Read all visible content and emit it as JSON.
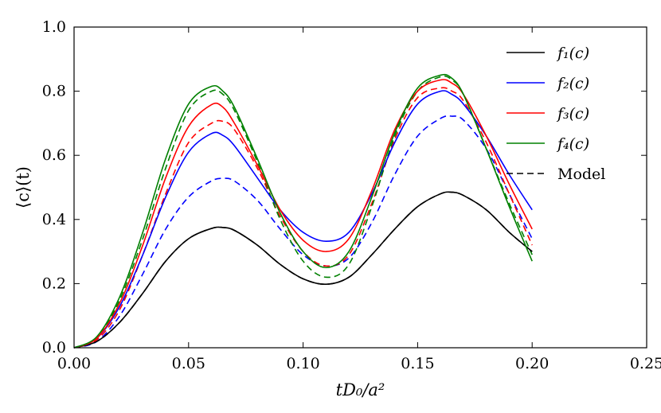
{
  "chart_data": {
    "type": "line",
    "title": "",
    "xlabel": "tD₀/a²",
    "ylabel": "⟨c⟩(t)",
    "xlim": [
      0.0,
      0.25
    ],
    "ylim": [
      0.0,
      1.0
    ],
    "x_ticks": [
      "0.00",
      "0.05",
      "0.10",
      "0.15",
      "0.20",
      "0.25"
    ],
    "y_ticks": [
      "0.0",
      "0.2",
      "0.4",
      "0.6",
      "0.8",
      "1.0"
    ],
    "x_tick_values": [
      0.0,
      0.05,
      0.1,
      0.15,
      0.2,
      0.25
    ],
    "y_tick_values": [
      0.0,
      0.2,
      0.4,
      0.6,
      0.8,
      1.0
    ],
    "legend_position": "top-right",
    "x": [
      0.0,
      0.01,
      0.02,
      0.03,
      0.04,
      0.05,
      0.06,
      0.065,
      0.07,
      0.08,
      0.09,
      0.1,
      0.11,
      0.12,
      0.13,
      0.14,
      0.15,
      0.16,
      0.165,
      0.17,
      0.18,
      0.19,
      0.2
    ],
    "series": [
      {
        "name": "f₁(c)",
        "color": "#000000",
        "dash": "solid",
        "values": [
          0.0,
          0.02,
          0.08,
          0.17,
          0.27,
          0.34,
          0.372,
          0.375,
          0.366,
          0.32,
          0.26,
          0.215,
          0.198,
          0.22,
          0.29,
          0.37,
          0.44,
          0.48,
          0.485,
          0.475,
          0.43,
          0.36,
          0.3
        ]
      },
      {
        "name": "f₂(c)",
        "color": "#0000ff",
        "dash": "solid",
        "values": [
          0.0,
          0.03,
          0.13,
          0.29,
          0.47,
          0.61,
          0.668,
          0.662,
          0.63,
          0.53,
          0.43,
          0.36,
          0.332,
          0.36,
          0.48,
          0.64,
          0.76,
          0.8,
          0.79,
          0.76,
          0.66,
          0.54,
          0.43
        ]
      },
      {
        "name": "f₃(c)",
        "color": "#ff0000",
        "dash": "solid",
        "values": [
          0.0,
          0.03,
          0.14,
          0.32,
          0.53,
          0.69,
          0.758,
          0.75,
          0.7,
          0.57,
          0.43,
          0.335,
          0.3,
          0.34,
          0.49,
          0.68,
          0.8,
          0.835,
          0.825,
          0.79,
          0.66,
          0.51,
          0.37
        ]
      },
      {
        "name": "f₄(c)",
        "color": "#008000",
        "dash": "solid",
        "values": [
          0.0,
          0.035,
          0.16,
          0.36,
          0.59,
          0.76,
          0.815,
          0.8,
          0.75,
          0.59,
          0.42,
          0.3,
          0.25,
          0.3,
          0.47,
          0.67,
          0.81,
          0.85,
          0.84,
          0.79,
          0.62,
          0.44,
          0.27
        ]
      }
    ],
    "model_series": [
      {
        "name": "Model (f₁)",
        "color": "#000000",
        "dash": "dashed",
        "values": [
          0.0,
          0.02,
          0.08,
          0.17,
          0.27,
          0.34,
          0.372,
          0.375,
          0.366,
          0.32,
          0.26,
          0.215,
          0.198,
          0.22,
          0.29,
          0.37,
          0.44,
          0.48,
          0.485,
          0.475,
          0.43,
          0.36,
          0.3
        ]
      },
      {
        "name": "Model (f₂)",
        "color": "#0000ff",
        "dash": "dashed",
        "values": [
          0.0,
          0.02,
          0.1,
          0.23,
          0.37,
          0.47,
          0.52,
          0.528,
          0.52,
          0.46,
          0.37,
          0.29,
          0.255,
          0.28,
          0.39,
          0.54,
          0.66,
          0.715,
          0.722,
          0.71,
          0.62,
          0.48,
          0.34
        ]
      },
      {
        "name": "Model (f₃)",
        "color": "#ff0000",
        "dash": "dashed",
        "values": [
          0.0,
          0.025,
          0.12,
          0.29,
          0.48,
          0.64,
          0.7,
          0.706,
          0.68,
          0.56,
          0.41,
          0.3,
          0.255,
          0.29,
          0.45,
          0.65,
          0.78,
          0.81,
          0.8,
          0.77,
          0.64,
          0.48,
          0.32
        ]
      },
      {
        "name": "Model (f₄)",
        "color": "#008000",
        "dash": "dashed",
        "values": [
          0.0,
          0.03,
          0.15,
          0.34,
          0.56,
          0.74,
          0.8,
          0.79,
          0.74,
          0.58,
          0.4,
          0.27,
          0.22,
          0.26,
          0.44,
          0.66,
          0.8,
          0.845,
          0.835,
          0.79,
          0.62,
          0.45,
          0.29
        ]
      }
    ],
    "legend": [
      {
        "label": "f₁(c)",
        "color": "#000000",
        "dash": "solid",
        "math": true
      },
      {
        "label": "f₂(c)",
        "color": "#0000ff",
        "dash": "solid",
        "math": true
      },
      {
        "label": "f₃(c)",
        "color": "#ff0000",
        "dash": "solid",
        "math": true
      },
      {
        "label": "f₄(c)",
        "color": "#008000",
        "dash": "solid",
        "math": true
      },
      {
        "label": "Model",
        "color": "#000000",
        "dash": "dashed",
        "math": false
      }
    ]
  }
}
